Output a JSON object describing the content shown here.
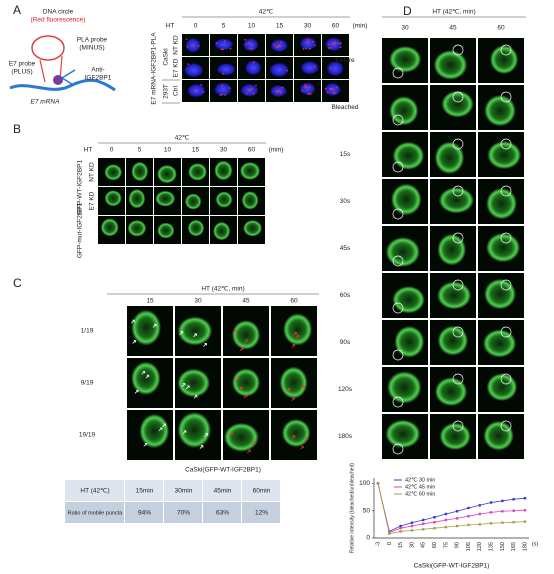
{
  "panel_a": {
    "label": "A",
    "schematic": {
      "dna_circle": "DNA circle",
      "red_fluorescence": "(Red fluorescence)",
      "pla_probe": "PLA probe",
      "minus": "(MINUS)",
      "e7_probe": "E7 probe",
      "plus": "(PLUS)",
      "anti": "Anti-",
      "igf2bp1": "IGF2BP1",
      "e7_mrna": "E7 mRNA"
    },
    "condition": "42℃",
    "ht": "HT",
    "times": [
      "0",
      "5",
      "10",
      "15",
      "30",
      "60"
    ],
    "unit": "(min)",
    "side_label": "E7 mRNA-IGF2BP1-PLA",
    "groups": [
      {
        "name": "CaSki",
        "rows": [
          "NT KD",
          "E7 KD"
        ]
      },
      {
        "name": "293T",
        "rows": [
          "Ctrl"
        ]
      }
    ]
  },
  "panel_b": {
    "label": "B",
    "condition": "42℃",
    "ht": "HT",
    "times": [
      "0",
      "5",
      "10",
      "15",
      "30",
      "60"
    ],
    "unit": "(min)",
    "groups": [
      {
        "name": "GFP-WT-IGF2BP1",
        "rows": [
          "NT KD",
          "E7 KD"
        ]
      },
      {
        "name": "GFP-mut-IGF2BP1",
        "rows": []
      }
    ]
  },
  "panel_c": {
    "label": "C",
    "header": "HT (42℃, min)",
    "times": [
      "15",
      "30",
      "45",
      "60"
    ],
    "rows": [
      "1/19",
      "9/19",
      "19/19"
    ],
    "caption": "CaSki(GFP-WT-IGF2BP1)",
    "table": {
      "rows": [
        [
          "HT (42℃)",
          "15min",
          "30min",
          "45min",
          "60min"
        ],
        [
          "Ratio of mobile puncta",
          "94%",
          "70%",
          "63%",
          "12%"
        ]
      ]
    }
  },
  "panel_d": {
    "label": "D",
    "header": "HT (42℃, min)",
    "times": [
      "30",
      "45",
      "60"
    ],
    "rows": [
      "Before",
      "Bleached",
      "15s",
      "30s",
      "45s",
      "60s",
      "90s",
      "120s",
      "180s"
    ]
  },
  "chart_data": {
    "type": "line",
    "ylabel": "Relative intensity (bleached/unbleached)",
    "xlabel": "CaSki(GFP-WT-IGF2BP1)",
    "x_unit": "(s)",
    "categories": [
      "-3",
      "0",
      "15",
      "30",
      "45",
      "60",
      "75",
      "90",
      "105",
      "120",
      "135",
      "150",
      "165",
      "180"
    ],
    "series": [
      {
        "name": "42℃ 30 min",
        "color": "#3a3ad0",
        "values": [
          100,
          12,
          22,
          28,
          33,
          38,
          44,
          49,
          55,
          60,
          65,
          68,
          71,
          73
        ]
      },
      {
        "name": "42℃ 45 min",
        "color": "#e040c0",
        "values": [
          100,
          10,
          18,
          22,
          26,
          29,
          33,
          36,
          40,
          44,
          47,
          49,
          50,
          51
        ]
      },
      {
        "name": "42℃ 60 min",
        "color": "#a8a040",
        "values": [
          100,
          8,
          12,
          14,
          16,
          18,
          20,
          22,
          24,
          25,
          27,
          28,
          29,
          30
        ]
      }
    ],
    "ylim": [
      0,
      110
    ],
    "yticks": [
      0,
      50,
      100
    ],
    "legend": "upper-left"
  }
}
